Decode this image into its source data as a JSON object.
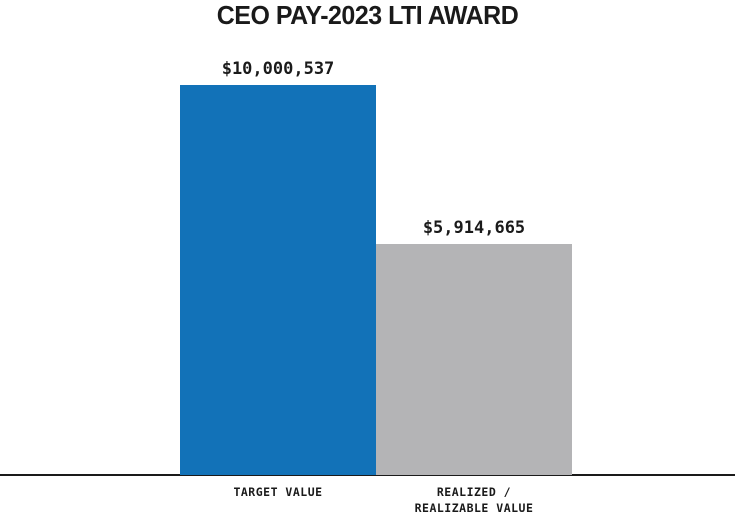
{
  "title": "CEO PAY-2023 LTI AWARD",
  "chart_data": {
    "type": "bar",
    "title": "CEO PAY-2023 LTI AWARD",
    "categories": [
      "TARGET VALUE",
      "REALIZED /\nREALIZABLE VALUE"
    ],
    "values": [
      10000537,
      5914665
    ],
    "value_labels": [
      "$10,000,537",
      "$5,914,665"
    ],
    "bar_colors": [
      "#1272b8",
      "#b4b4b6"
    ],
    "axis_color": "#1a1a1a",
    "ylim": [
      0,
      10000537
    ],
    "xlabel": "",
    "ylabel": "",
    "grid": false,
    "legend": "none"
  },
  "layout_note": ""
}
